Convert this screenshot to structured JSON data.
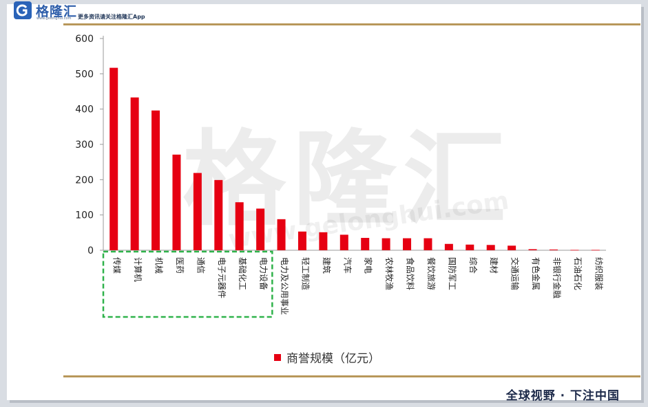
{
  "header": {
    "brand": "格隆汇",
    "brand_url": "www.gelonghui.com",
    "tagline": "更多资讯请关注格隆汇App"
  },
  "watermark": {
    "text": "格隆汇",
    "url": "www.gelonghui.com"
  },
  "footer": {
    "slogan": "全球视野 · 下注中国"
  },
  "colors": {
    "bar": "#e60012",
    "highlight_box": "#2fb24a",
    "rule": "#b8975a"
  },
  "chart_data": {
    "type": "bar",
    "title": "",
    "xlabel": "",
    "ylabel": "",
    "ylim": [
      0,
      600
    ],
    "yticks": [
      0,
      100,
      200,
      300,
      400,
      500,
      600
    ],
    "categories": [
      "传媒",
      "计算机",
      "机械",
      "医药",
      "通信",
      "电子元器件",
      "基础化工",
      "电力设备",
      "电力及公用事业",
      "轻工制造",
      "建筑",
      "汽车",
      "家电",
      "农林牧渔",
      "食品饮料",
      "餐饮旅游",
      "国防军工",
      "综合",
      "建材",
      "交通运输",
      "有色金属",
      "非银行金融",
      "石油石化",
      "纺织服装"
    ],
    "series": [
      {
        "name": "商誉规模（亿元）",
        "values": [
          517,
          433,
          396,
          271,
          219,
          199,
          136,
          118,
          88,
          53,
          51,
          44,
          35,
          34,
          34,
          34,
          18,
          16,
          15,
          13,
          3,
          2,
          1,
          1
        ]
      }
    ],
    "highlighted_categories": [
      "传媒",
      "计算机",
      "机械",
      "医药",
      "通信",
      "电子元器件",
      "基础化工",
      "电力设备"
    ],
    "grid": false,
    "legend_position": "bottom"
  }
}
